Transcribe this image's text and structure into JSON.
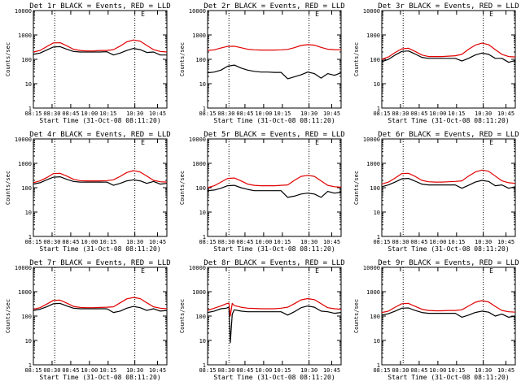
{
  "page": {
    "xlabel": "Start Time (31-Oct-08 08:11:20)",
    "ylabel": "Counts/sec",
    "x_ticks": [
      "08:15",
      "08:30",
      "08:45",
      "10:00",
      "10:15",
      "10:30",
      "10:45"
    ],
    "y_ticks": [
      "1",
      "10",
      "100",
      "1000",
      "10000"
    ],
    "marker": "E",
    "colors": {
      "events": "#000000",
      "lld": "#e00000",
      "axes": "#000000",
      "background": "#ffffff"
    }
  },
  "chart_data": [
    {
      "type": "line",
      "title": "Det 1r BLACK = Events, RED = LLD",
      "yscale": "log",
      "ylim": [
        1,
        10000
      ],
      "xlim": [
        0,
        10
      ],
      "series": [
        {
          "name": "Events",
          "x": [
            0,
            0.5,
            1.0,
            1.5,
            2.0,
            2.5,
            3.0,
            3.5,
            4.0,
            4.5,
            5.0,
            5.5,
            6.0,
            6.5,
            7.0,
            7.5,
            8.0,
            8.5,
            9.0,
            9.5,
            10.0
          ],
          "values": [
            160,
            180,
            240,
            320,
            330,
            260,
            210,
            200,
            200,
            200,
            200,
            205,
            150,
            180,
            230,
            280,
            250,
            190,
            200,
            150,
            150
          ]
        },
        {
          "name": "LLD",
          "x": [
            0,
            0.5,
            1.0,
            1.5,
            2.0,
            2.5,
            3.0,
            3.5,
            4.0,
            4.5,
            5.0,
            5.5,
            6.0,
            6.5,
            7.0,
            7.5,
            8.0,
            8.5,
            9.0,
            9.5,
            10.0
          ],
          "values": [
            200,
            230,
            330,
            470,
            480,
            360,
            260,
            230,
            220,
            220,
            230,
            230,
            250,
            350,
            520,
            620,
            560,
            370,
            250,
            210,
            200
          ]
        }
      ]
    },
    {
      "type": "line",
      "title": "Det 2r BLACK = Events, RED = LLD",
      "yscale": "log",
      "ylim": [
        1,
        10000
      ],
      "xlim": [
        0,
        10
      ],
      "series": [
        {
          "name": "Events",
          "x": [
            0,
            0.5,
            1.0,
            1.5,
            2.0,
            2.5,
            3.0,
            3.5,
            4.0,
            4.5,
            5.0,
            5.5,
            6.0,
            6.5,
            7.0,
            7.5,
            8.0,
            8.5,
            9.0,
            9.5,
            10.0
          ],
          "values": [
            28,
            30,
            36,
            52,
            58,
            44,
            36,
            32,
            30,
            30,
            29,
            29,
            16,
            19,
            23,
            30,
            26,
            17,
            26,
            22,
            28
          ]
        },
        {
          "name": "LLD",
          "x": [
            0,
            0.5,
            1.0,
            1.5,
            2.0,
            2.5,
            3.0,
            3.5,
            4.0,
            4.5,
            5.0,
            5.5,
            6.0,
            6.5,
            7.0,
            7.5,
            8.0,
            8.5,
            9.0,
            9.5,
            10.0
          ],
          "values": [
            230,
            245,
            290,
            340,
            345,
            300,
            260,
            245,
            240,
            240,
            240,
            245,
            255,
            300,
            370,
            400,
            380,
            310,
            260,
            250,
            245
          ]
        }
      ]
    },
    {
      "type": "line",
      "title": "Det 3r BLACK = Events, RED = LLD",
      "yscale": "log",
      "ylim": [
        1,
        10000
      ],
      "xlim": [
        0,
        10
      ],
      "series": [
        {
          "name": "Events",
          "x": [
            0,
            0.5,
            1.0,
            1.5,
            2.0,
            2.5,
            3.0,
            3.5,
            4.0,
            4.5,
            5.0,
            5.5,
            6.0,
            6.5,
            7.0,
            7.5,
            8.0,
            8.5,
            9.0,
            9.5,
            10.0
          ],
          "values": [
            80,
            100,
            150,
            210,
            220,
            165,
            120,
            110,
            110,
            110,
            110,
            110,
            85,
            110,
            150,
            180,
            160,
            110,
            110,
            75,
            90
          ]
        },
        {
          "name": "LLD",
          "x": [
            0,
            0.5,
            1.0,
            1.5,
            2.0,
            2.5,
            3.0,
            3.5,
            4.0,
            4.5,
            5.0,
            5.5,
            6.0,
            6.5,
            7.0,
            7.5,
            8.0,
            8.5,
            9.0,
            9.5,
            10.0
          ],
          "values": [
            100,
            125,
            190,
            270,
            285,
            210,
            150,
            130,
            130,
            130,
            135,
            140,
            160,
            260,
            380,
            460,
            400,
            250,
            160,
            130,
            125
          ]
        }
      ]
    },
    {
      "type": "line",
      "title": "Det 4r BLACK = Events, RED = LLD",
      "yscale": "log",
      "ylim": [
        1,
        10000
      ],
      "xlim": [
        0,
        10
      ],
      "series": [
        {
          "name": "Events",
          "x": [
            0,
            0.5,
            1.0,
            1.5,
            2.0,
            2.5,
            3.0,
            3.5,
            4.0,
            4.5,
            5.0,
            5.5,
            6.0,
            6.5,
            7.0,
            7.5,
            8.0,
            8.5,
            9.0,
            9.5,
            10.0
          ],
          "values": [
            140,
            160,
            210,
            270,
            280,
            220,
            180,
            170,
            170,
            170,
            170,
            170,
            125,
            150,
            190,
            210,
            190,
            150,
            180,
            140,
            150
          ]
        },
        {
          "name": "LLD",
          "x": [
            0,
            0.5,
            1.0,
            1.5,
            2.0,
            2.5,
            3.0,
            3.5,
            4.0,
            4.5,
            5.0,
            5.5,
            6.0,
            6.5,
            7.0,
            7.5,
            8.0,
            8.5,
            9.0,
            9.5,
            10.0
          ],
          "values": [
            160,
            190,
            260,
            380,
            390,
            300,
            220,
            195,
            190,
            190,
            190,
            195,
            210,
            290,
            420,
            500,
            440,
            300,
            200,
            175,
            170
          ]
        }
      ]
    },
    {
      "type": "line",
      "title": "Det 5r BLACK = Events, RED = LLD",
      "yscale": "log",
      "ylim": [
        1,
        10000
      ],
      "xlim": [
        0,
        10
      ],
      "series": [
        {
          "name": "Events",
          "x": [
            0,
            0.5,
            1.0,
            1.5,
            2.0,
            2.5,
            3.0,
            3.5,
            4.0,
            4.5,
            5.0,
            5.5,
            6.0,
            6.5,
            7.0,
            7.5,
            8.0,
            8.5,
            9.0,
            9.5,
            10.0
          ],
          "values": [
            75,
            80,
            95,
            120,
            125,
            100,
            85,
            75,
            75,
            75,
            75,
            75,
            40,
            45,
            55,
            60,
            55,
            40,
            70,
            60,
            65
          ]
        },
        {
          "name": "LLD",
          "x": [
            0,
            0.5,
            1.0,
            1.5,
            2.0,
            2.5,
            3.0,
            3.5,
            4.0,
            4.5,
            5.0,
            5.5,
            6.0,
            6.5,
            7.0,
            7.5,
            8.0,
            8.5,
            9.0,
            9.5,
            10.0
          ],
          "values": [
            100,
            120,
            170,
            240,
            250,
            190,
            140,
            125,
            120,
            120,
            120,
            125,
            130,
            200,
            290,
            320,
            290,
            190,
            125,
            110,
            105
          ]
        }
      ]
    },
    {
      "type": "line",
      "title": "Det 6r BLACK = Events, RED = LLD",
      "yscale": "log",
      "ylim": [
        1,
        10000
      ],
      "xlim": [
        0,
        10
      ],
      "series": [
        {
          "name": "Events",
          "x": [
            0,
            0.5,
            1.0,
            1.5,
            2.0,
            2.5,
            3.0,
            3.5,
            4.0,
            4.5,
            5.0,
            5.5,
            6.0,
            6.5,
            7.0,
            7.5,
            8.0,
            8.5,
            9.0,
            9.5,
            10.0
          ],
          "values": [
            110,
            130,
            170,
            230,
            240,
            185,
            140,
            130,
            130,
            130,
            130,
            130,
            95,
            125,
            170,
            200,
            180,
            120,
            130,
            95,
            110
          ]
        },
        {
          "name": "LLD",
          "x": [
            0,
            0.5,
            1.0,
            1.5,
            2.0,
            2.5,
            3.0,
            3.5,
            4.0,
            4.5,
            5.0,
            5.5,
            6.0,
            6.5,
            7.0,
            7.5,
            8.0,
            8.5,
            9.0,
            9.5,
            10.0
          ],
          "values": [
            140,
            170,
            250,
            380,
            390,
            290,
            200,
            175,
            170,
            170,
            175,
            180,
            190,
            300,
            440,
            530,
            470,
            300,
            190,
            160,
            150
          ]
        }
      ]
    },
    {
      "type": "line",
      "title": "Det 7r BLACK = Events, RED = LLD",
      "yscale": "log",
      "ylim": [
        1,
        10000
      ],
      "xlim": [
        0,
        10
      ],
      "series": [
        {
          "name": "Events",
          "x": [
            0,
            0.5,
            1.0,
            1.5,
            2.0,
            2.5,
            3.0,
            3.5,
            4.0,
            4.5,
            5.0,
            5.5,
            6.0,
            6.5,
            7.0,
            7.5,
            8.0,
            8.5,
            9.0,
            9.5,
            10.0
          ],
          "values": [
            170,
            190,
            240,
            320,
            330,
            260,
            210,
            200,
            200,
            200,
            200,
            200,
            140,
            160,
            210,
            250,
            220,
            170,
            200,
            160,
            170
          ]
        },
        {
          "name": "LLD",
          "x": [
            0,
            0.5,
            1.0,
            1.5,
            2.0,
            2.5,
            3.0,
            3.5,
            4.0,
            4.5,
            5.0,
            5.5,
            6.0,
            6.5,
            7.0,
            7.5,
            8.0,
            8.5,
            9.0,
            9.5,
            10.0
          ],
          "values": [
            190,
            220,
            310,
            440,
            450,
            340,
            250,
            225,
            220,
            220,
            225,
            230,
            240,
            350,
            510,
            580,
            520,
            350,
            240,
            210,
            200
          ]
        }
      ]
    },
    {
      "type": "line",
      "title": "Det 8r BLACK = Events, RED = LLD",
      "yscale": "log",
      "ylim": [
        1,
        10000
      ],
      "xlim": [
        0,
        10
      ],
      "series": [
        {
          "name": "Events",
          "x": [
            0,
            0.5,
            1.0,
            1.4,
            1.6,
            1.7,
            1.85,
            2.0,
            2.5,
            3.0,
            3.5,
            4.0,
            4.5,
            5.0,
            5.5,
            6.0,
            6.5,
            7.0,
            7.5,
            8.0,
            8.5,
            9.0,
            9.5,
            10.0
          ],
          "values": [
            140,
            160,
            200,
            210,
            230,
            8,
            120,
            180,
            160,
            150,
            150,
            150,
            150,
            150,
            150,
            110,
            150,
            220,
            260,
            230,
            160,
            150,
            130,
            140
          ]
        },
        {
          "name": "LLD",
          "x": [
            0,
            0.5,
            1.0,
            1.4,
            1.6,
            1.7,
            1.85,
            2.0,
            2.5,
            3.0,
            3.5,
            4.0,
            4.5,
            5.0,
            5.5,
            6.0,
            6.5,
            7.0,
            7.5,
            8.0,
            8.5,
            9.0,
            9.5,
            10.0
          ],
          "values": [
            170,
            210,
            260,
            320,
            340,
            100,
            330,
            270,
            230,
            210,
            205,
            200,
            200,
            200,
            210,
            230,
            320,
            460,
            520,
            470,
            320,
            220,
            200,
            190
          ]
        }
      ]
    },
    {
      "type": "line",
      "title": "Det 9r BLACK = Events, RED = LLD",
      "yscale": "log",
      "ylim": [
        1,
        10000
      ],
      "xlim": [
        0,
        10
      ],
      "series": [
        {
          "name": "Events",
          "x": [
            0,
            0.5,
            1.0,
            1.5,
            2.0,
            2.5,
            3.0,
            3.5,
            4.0,
            4.5,
            5.0,
            5.5,
            6.0,
            6.5,
            7.0,
            7.5,
            8.0,
            8.5,
            9.0,
            9.5,
            10.0
          ],
          "values": [
            110,
            125,
            160,
            210,
            215,
            170,
            140,
            130,
            130,
            130,
            130,
            130,
            90,
            110,
            140,
            160,
            145,
            100,
            120,
            90,
            100
          ]
        },
        {
          "name": "LLD",
          "x": [
            0,
            0.5,
            1.0,
            1.5,
            2.0,
            2.5,
            3.0,
            3.5,
            4.0,
            4.5,
            5.0,
            5.5,
            6.0,
            6.5,
            7.0,
            7.5,
            8.0,
            8.5,
            9.0,
            9.5,
            10.0
          ],
          "values": [
            140,
            160,
            230,
            320,
            330,
            250,
            190,
            170,
            165,
            165,
            170,
            170,
            180,
            260,
            370,
            430,
            380,
            250,
            170,
            150,
            145
          ]
        }
      ]
    }
  ]
}
